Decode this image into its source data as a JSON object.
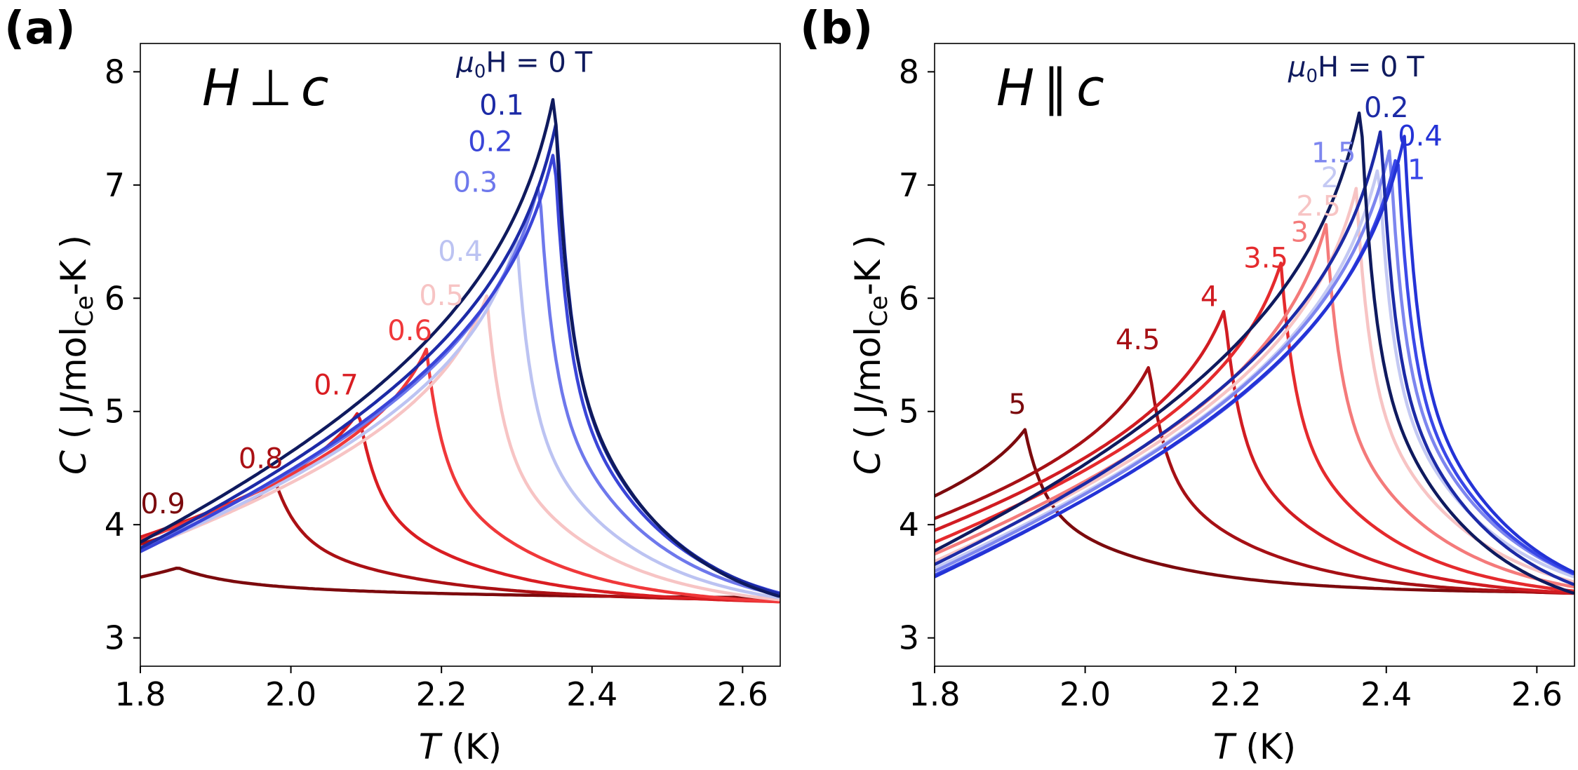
{
  "figure": {
    "width": 2249,
    "height": 1098
  },
  "chart_data": [
    {
      "panel": "(a)",
      "type": "line",
      "field_direction": {
        "var": "H",
        "symbol": "⊥",
        "axis": "c"
      },
      "xlabel": {
        "var": "T",
        "unit": " (K)"
      },
      "ylabel": {
        "var": "C",
        "pre": " ( J/mol",
        "sub": "Ce",
        "post": "-K )"
      },
      "xlim": [
        1.8,
        2.65
      ],
      "ylim": [
        2.75,
        8.25
      ],
      "xticks": [
        {
          "value": 1.8,
          "label": "1.8"
        },
        {
          "value": 2.0,
          "label": "2.0"
        },
        {
          "value": 2.2,
          "label": "2.2"
        },
        {
          "value": 2.4,
          "label": "2.4"
        },
        {
          "value": 2.6,
          "label": "2.6"
        }
      ],
      "yticks": [
        {
          "value": 3,
          "label": "3"
        },
        {
          "value": 4,
          "label": "4"
        },
        {
          "value": 5,
          "label": "5"
        },
        {
          "value": 6,
          "label": "6"
        },
        {
          "value": 7,
          "label": "7"
        },
        {
          "value": 8,
          "label": "8"
        }
      ],
      "legend_title": {
        "prefix": "μ",
        "sub": "0",
        "suffix": "H = 0 T",
        "color": "#0f1a5e",
        "x": 2.31,
        "y": 8.0
      },
      "series": [
        {
          "name": "0 T",
          "color": "#0f1a5e",
          "peak_T": 2.35,
          "peak_C": 7.82
        },
        {
          "name": "0.1",
          "color": "#1c2aa6",
          "peak_T": 2.353,
          "peak_C": 7.57,
          "label": "0.1",
          "label_x": 2.28,
          "label_y": 7.62
        },
        {
          "name": "0.2",
          "color": "#3a45d8",
          "peak_T": 2.35,
          "peak_C": 7.32,
          "label": "0.2",
          "label_x": 2.265,
          "label_y": 7.3
        },
        {
          "name": "0.3",
          "color": "#6e78ec",
          "peak_T": 2.33,
          "peak_C": 7.03,
          "label": "0.3",
          "label_x": 2.245,
          "label_y": 6.94
        },
        {
          "name": "0.4",
          "color": "#bcc3f2",
          "peak_T": 2.3,
          "peak_C": 6.52,
          "label": "0.4",
          "label_x": 2.225,
          "label_y": 6.33
        },
        {
          "name": "0.5",
          "color": "#f7c4c4",
          "peak_T": 2.26,
          "peak_C": 6.02,
          "label": "0.5",
          "label_x": 2.2,
          "label_y": 5.94
        },
        {
          "name": "0.6",
          "color": "#f0383a",
          "peak_T": 2.18,
          "peak_C": 5.55,
          "label": "0.6",
          "label_x": 2.158,
          "label_y": 5.63
        },
        {
          "name": "0.7",
          "color": "#d91d22",
          "peak_T": 2.09,
          "peak_C": 5.0,
          "label": "0.7",
          "label_x": 2.06,
          "label_y": 5.15
        },
        {
          "name": "0.8",
          "color": "#aa1014",
          "peak_T": 1.98,
          "peak_C": 4.37,
          "label": "0.8",
          "label_x": 1.96,
          "label_y": 4.5
        },
        {
          "name": "0.9",
          "color": "#7c0a0d",
          "peak_T": 1.85,
          "peak_C": 3.62,
          "label": "0.9",
          "label_x": 1.83,
          "label_y": 4.1
        }
      ]
    },
    {
      "panel": "(b)",
      "type": "line",
      "field_direction": {
        "var": "H",
        "symbol": "∥",
        "axis": "c"
      },
      "xlabel": {
        "var": "T",
        "unit": " (K)"
      },
      "ylabel": {
        "var": "C",
        "pre": " ( J/mol",
        "sub": "Ce",
        "post": "-K )"
      },
      "xlim": [
        1.8,
        2.65
      ],
      "ylim": [
        2.75,
        8.25
      ],
      "xticks": [
        {
          "value": 1.8,
          "label": "1.8"
        },
        {
          "value": 2.0,
          "label": "2.0"
        },
        {
          "value": 2.2,
          "label": "2.2"
        },
        {
          "value": 2.4,
          "label": "2.4"
        },
        {
          "value": 2.6,
          "label": "2.6"
        }
      ],
      "yticks": [
        {
          "value": 3,
          "label": "3"
        },
        {
          "value": 4,
          "label": "4"
        },
        {
          "value": 5,
          "label": "5"
        },
        {
          "value": 6,
          "label": "6"
        },
        {
          "value": 7,
          "label": "7"
        },
        {
          "value": 8,
          "label": "8"
        }
      ],
      "legend_title": {
        "prefix": "μ",
        "sub": "0",
        "suffix": "H = 0 T",
        "color": "#0f1a5e",
        "x": 2.36,
        "y": 7.96
      },
      "series": [
        {
          "name": "0 T",
          "color": "#0f1a5e",
          "peak_T": 2.366,
          "peak_C": 7.7
        },
        {
          "name": "0.2",
          "color": "#1c2aa6",
          "peak_T": 2.393,
          "peak_C": 7.5,
          "label": "0.2",
          "label_x": 2.4,
          "label_y": 7.6
        },
        {
          "name": "0.4",
          "color": "#2433d6",
          "peak_T": 2.424,
          "peak_C": 7.43,
          "label": "0.4",
          "label_x": 2.445,
          "label_y": 7.35
        },
        {
          "name": "1",
          "color": "#3a48e8",
          "peak_T": 2.415,
          "peak_C": 7.3,
          "label": "1",
          "label_x": 2.44,
          "label_y": 7.05
        },
        {
          "name": "1.5",
          "color": "#7d86ef",
          "peak_T": 2.405,
          "peak_C": 7.33,
          "label": "1.5",
          "label_x": 2.33,
          "label_y": 7.2
        },
        {
          "name": "2",
          "color": "#c4c9f3",
          "peak_T": 2.39,
          "peak_C": 7.18,
          "label": "2",
          "label_x": 2.325,
          "label_y": 6.98
        },
        {
          "name": "2.5",
          "color": "#f7c4c4",
          "peak_T": 2.36,
          "peak_C": 6.97,
          "label": "2.5",
          "label_x": 2.31,
          "label_y": 6.73
        },
        {
          "name": "3",
          "color": "#f47a7a",
          "peak_T": 2.32,
          "peak_C": 6.65,
          "label": "3",
          "label_x": 2.285,
          "label_y": 6.5
        },
        {
          "name": "3.5",
          "color": "#e52a2d",
          "peak_T": 2.26,
          "peak_C": 6.31,
          "label": "3.5",
          "label_x": 2.24,
          "label_y": 6.27
        },
        {
          "name": "4",
          "color": "#d11c22",
          "peak_T": 2.185,
          "peak_C": 5.9,
          "label": "4",
          "label_x": 2.165,
          "label_y": 5.93
        },
        {
          "name": "4.5",
          "color": "#a61015",
          "peak_T": 2.085,
          "peak_C": 5.4,
          "label": "4.5",
          "label_x": 2.07,
          "label_y": 5.55
        },
        {
          "name": "5",
          "color": "#7c0a0d",
          "peak_T": 1.92,
          "peak_C": 4.84,
          "label": "5",
          "label_x": 1.91,
          "label_y": 4.98
        }
      ]
    }
  ]
}
